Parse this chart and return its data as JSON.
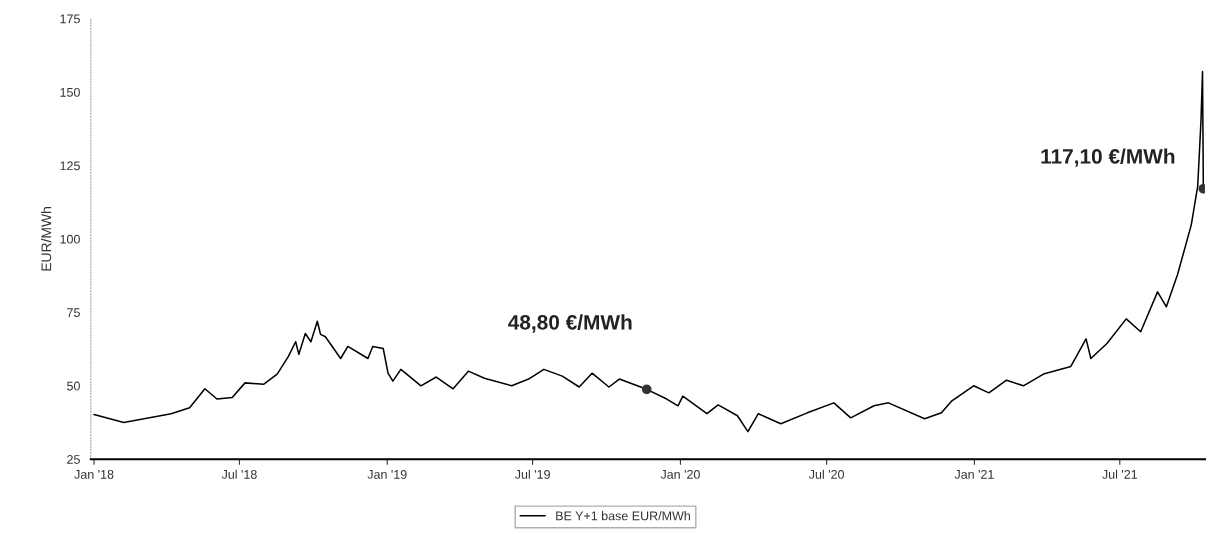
{
  "chart_data": {
    "type": "line",
    "ylabel": "EUR/MWh",
    "xlim": [
      "2017-12-28",
      "2021-10-15"
    ],
    "ylim": [
      25,
      175
    ],
    "yticks": [
      25,
      50,
      75,
      100,
      125,
      150,
      175
    ],
    "xticks": [
      {
        "value": "2018-01-01",
        "label": "Jan '18"
      },
      {
        "value": "2018-07-01",
        "label": "Jul '18"
      },
      {
        "value": "2019-01-01",
        "label": "Jan '19"
      },
      {
        "value": "2019-07-01",
        "label": "Jul '19"
      },
      {
        "value": "2020-01-01",
        "label": "Jan '20"
      },
      {
        "value": "2020-07-01",
        "label": "Jul '20"
      },
      {
        "value": "2021-01-01",
        "label": "Jan '21"
      },
      {
        "value": "2021-07-01",
        "label": "Jul '21"
      }
    ],
    "grid": false,
    "legend": "bottom",
    "marker": "none",
    "line_style": "solid",
    "series": [
      {
        "name": "BE Y+1 base EUR/MWh",
        "color": "#000000",
        "x": [
          "2018-01-01",
          "2018-02-07",
          "2018-04-07",
          "2018-04-30",
          "2018-05-19",
          "2018-06-03",
          "2018-06-22",
          "2018-07-08",
          "2018-07-31",
          "2018-08-17",
          "2018-08-31",
          "2018-09-09",
          "2018-09-13",
          "2018-09-21",
          "2018-09-28",
          "2018-10-06",
          "2018-10-10",
          "2018-10-16",
          "2018-11-04",
          "2018-11-13",
          "2018-12-08",
          "2018-12-14",
          "2018-12-27",
          "2019-01-02",
          "2019-01-08",
          "2019-01-18",
          "2019-02-12",
          "2019-03-03",
          "2019-03-24",
          "2019-04-12",
          "2019-05-02",
          "2019-06-05",
          "2019-06-26",
          "2019-07-15",
          "2019-08-07",
          "2019-08-28",
          "2019-09-13",
          "2019-10-04",
          "2019-10-17",
          "2019-11-20",
          "2019-12-15",
          "2019-12-29",
          "2020-01-04",
          "2020-02-03",
          "2020-02-17",
          "2020-03-12",
          "2020-03-25",
          "2020-04-07",
          "2020-05-05",
          "2020-06-07",
          "2020-07-10",
          "2020-07-31",
          "2020-08-29",
          "2020-09-16",
          "2020-10-31",
          "2020-11-21",
          "2020-12-04",
          "2020-12-31",
          "2021-01-19",
          "2021-02-10",
          "2021-03-03",
          "2021-03-28",
          "2021-05-01",
          "2021-05-20",
          "2021-05-26",
          "2021-06-15",
          "2021-07-09",
          "2021-07-27",
          "2021-08-17",
          "2021-08-28",
          "2021-09-11",
          "2021-09-28",
          "2021-10-06",
          "2021-10-10",
          "2021-10-12",
          "2021-10-13"
        ],
        "values": [
          40.2,
          37.5,
          40.5,
          42.5,
          49,
          45.5,
          46,
          51,
          50.5,
          54,
          60,
          65,
          60.7,
          67.8,
          65,
          72,
          67.5,
          66.7,
          59.3,
          63.4,
          59.3,
          63.4,
          62.7,
          54.3,
          51.6,
          55.6,
          50,
          53,
          49,
          55,
          52.6,
          50,
          52.3,
          55.6,
          53.3,
          49.6,
          54.3,
          49.6,
          52.3,
          48.8,
          45.5,
          43.2,
          46.5,
          40.5,
          43.5,
          39.8,
          34.4,
          40.5,
          37.1,
          40.8,
          44.2,
          39.1,
          43.2,
          44.2,
          38.8,
          40.8,
          44.9,
          50,
          47.6,
          51.9,
          50,
          54,
          56.6,
          66,
          59.3,
          64.4,
          72.8,
          68.4,
          82,
          76.9,
          88,
          104.8,
          118,
          139.8,
          157,
          117.1
        ]
      }
    ],
    "annotations": [
      {
        "text": "48,80 €/MWh",
        "x": "2019-11-20",
        "y": 48.8
      },
      {
        "text": "117,10 €/MWh",
        "x": "2021-10-13",
        "y": 117.1
      }
    ]
  }
}
